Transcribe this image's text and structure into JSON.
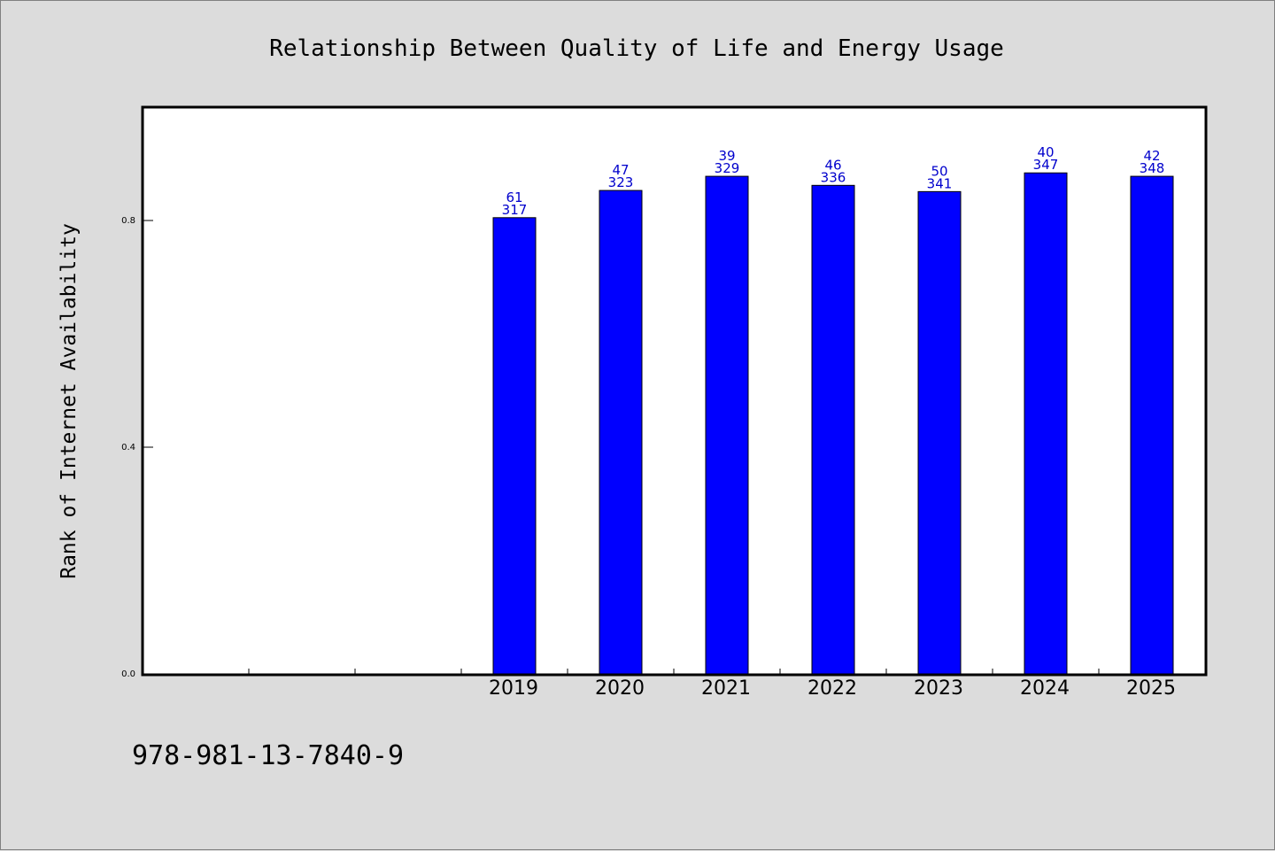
{
  "chart_data": {
    "type": "bar",
    "title": "Relationship Between Quality of Life and Energy Usage",
    "xlabel": "",
    "ylabel": "Rank of Internet Availability",
    "categories": [
      "",
      "",
      "",
      "2019",
      "2020",
      "2021",
      "2022",
      "2023",
      "2024",
      "2025"
    ],
    "series": [
      {
        "values": [
          null,
          null,
          null,
          0.805,
          0.853,
          0.878,
          0.862,
          0.851,
          0.884,
          0.878
        ],
        "labels_top": [
          null,
          null,
          null,
          "61",
          "47",
          "39",
          "46",
          "50",
          "40",
          "42"
        ],
        "labels_bottom": [
          null,
          null,
          null,
          "317",
          "323",
          "329",
          "336",
          "341",
          "347",
          "348"
        ]
      }
    ],
    "ylim": [
      0,
      1.0
    ],
    "yticks": [
      0.0,
      0.4,
      0.8
    ],
    "ytick_labels": [
      "0.0",
      "0.4",
      "0.8"
    ],
    "grid": false,
    "colors": {
      "bar": "#0000ff",
      "bar_edge": "#000000",
      "data_label": "#0000cc",
      "plot_bg": "#ffffff",
      "page_bg": "#dcdcdc"
    }
  },
  "footnote": "978-981-13-7840-9"
}
